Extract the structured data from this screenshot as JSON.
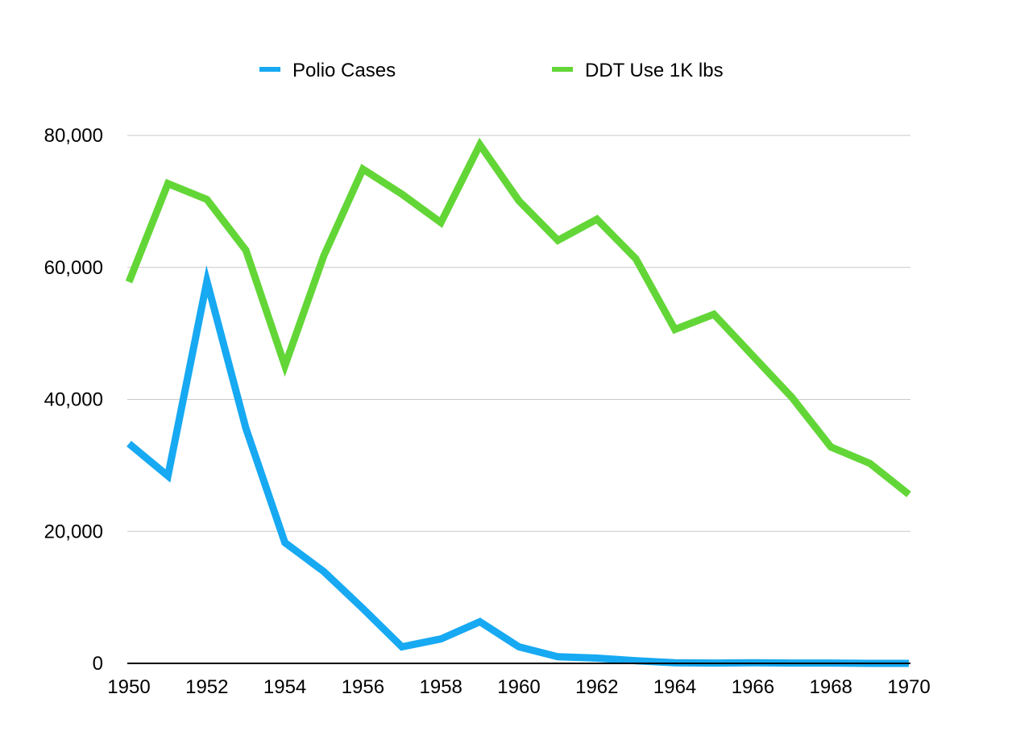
{
  "chart_data": {
    "type": "line",
    "title": "",
    "xlabel": "",
    "ylabel": "",
    "x": [
      1950,
      1951,
      1952,
      1953,
      1954,
      1955,
      1956,
      1957,
      1958,
      1959,
      1960,
      1961,
      1962,
      1963,
      1964,
      1965,
      1966,
      1967,
      1968,
      1969,
      1970
    ],
    "xticks": [
      "1950",
      "1952",
      "1954",
      "1956",
      "1958",
      "1960",
      "1962",
      "1964",
      "1966",
      "1968",
      "1970"
    ],
    "yticks": [
      "0",
      "20,000",
      "40,000",
      "60,000",
      "80,000"
    ],
    "xlim": [
      1950,
      1970
    ],
    "ylim": [
      0,
      80000
    ],
    "grid": "horizontal",
    "legend_position": "top",
    "series": [
      {
        "name": "Polio Cases",
        "color": "#17a9f2",
        "values": [
          33300,
          28400,
          57900,
          35600,
          18300,
          13900,
          8300,
          2500,
          3700,
          6300,
          2500,
          1000,
          800,
          400,
          100,
          50,
          100,
          50,
          50,
          0,
          0
        ]
      },
      {
        "name": "DDT Use 1K lbs",
        "color": "#63d637",
        "values": [
          57800,
          72700,
          70300,
          62600,
          45100,
          61800,
          74900,
          71100,
          66800,
          78600,
          70100,
          64100,
          67300,
          61300,
          50600,
          52900,
          46600,
          40300,
          32800,
          30300,
          25600
        ]
      }
    ]
  }
}
